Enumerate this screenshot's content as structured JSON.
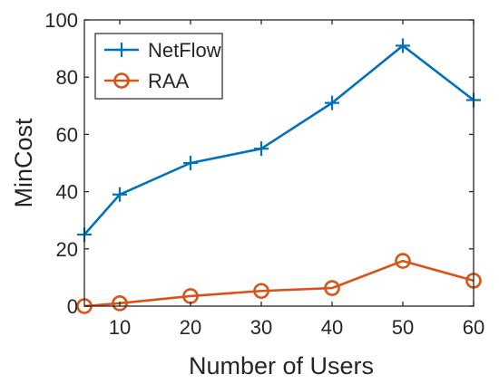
{
  "chart_data": {
    "type": "line",
    "xlabel": "Number of Users",
    "ylabel": "MinCost",
    "xlim": [
      5,
      60
    ],
    "ylim": [
      0,
      100
    ],
    "xticks": [
      10,
      20,
      30,
      40,
      50,
      60
    ],
    "yticks": [
      0,
      20,
      40,
      60,
      80,
      100
    ],
    "legend_position": "top-left",
    "grid": false,
    "x": [
      5,
      10,
      20,
      30,
      40,
      50,
      60
    ],
    "series": [
      {
        "name": "NetFlow",
        "marker": "plus",
        "color": "#0072BD",
        "values": [
          25,
          39,
          50,
          55,
          71,
          91,
          72
        ]
      },
      {
        "name": "RAA",
        "marker": "circle",
        "color": "#D95319",
        "values": [
          0,
          1,
          3.5,
          5.3,
          6.3,
          15.8,
          8.9
        ]
      }
    ]
  }
}
